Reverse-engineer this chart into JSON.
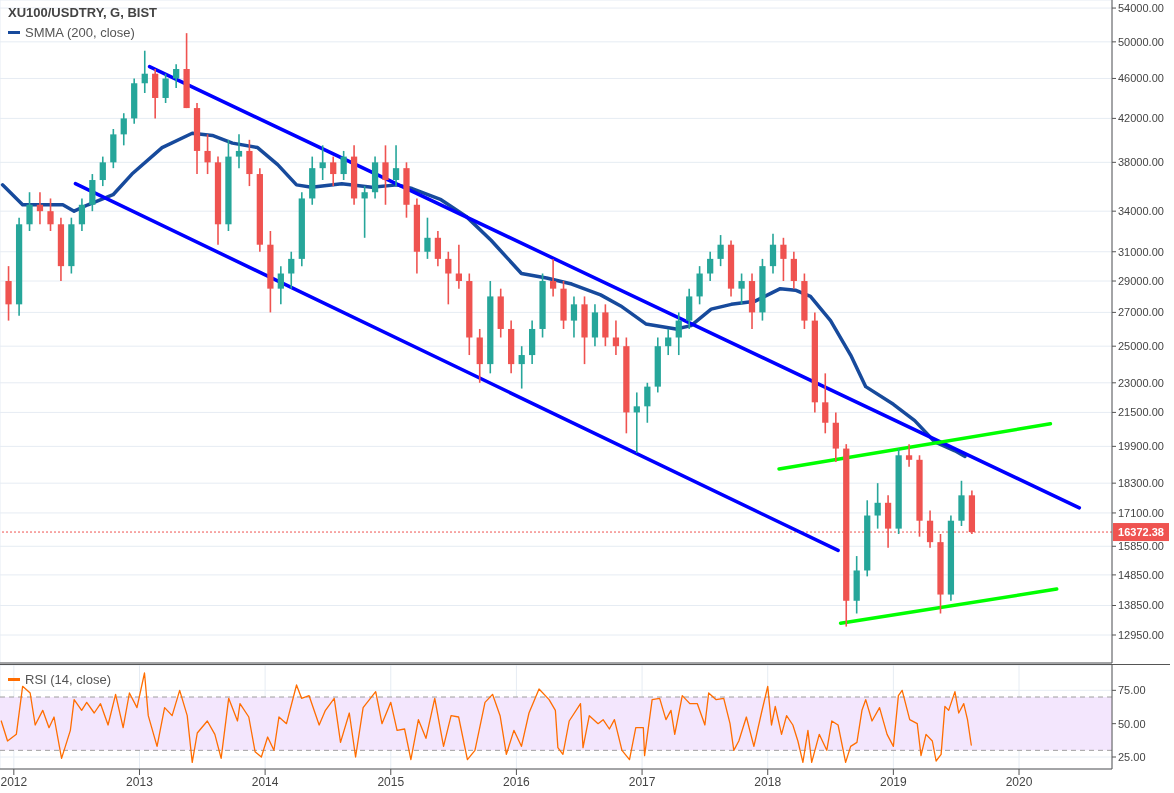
{
  "chart_data": [
    {
      "type": "candlestick",
      "title": "XU100/USDTRY, G, BIST",
      "log": true,
      "grid": true,
      "legend": "top left",
      "tick_labels": "y",
      "xlim": [
        2011.89,
        2020.74
      ],
      "xticks": [
        2012,
        2013,
        2014,
        2015,
        2016,
        2017,
        2018,
        2019,
        2020
      ],
      "ylim": [
        12150,
        55000
      ],
      "yticks": [
        {
          "value": 12950,
          "label": "12950.00"
        },
        {
          "value": 13850,
          "label": "13850.00"
        },
        {
          "value": 14850,
          "label": "14850.00"
        },
        {
          "value": 15850,
          "label": "15850.00"
        },
        {
          "value": 17100,
          "label": "17100.00"
        },
        {
          "value": 18300,
          "label": "18300.00"
        },
        {
          "value": 19900,
          "label": "19900.00"
        },
        {
          "value": 21500,
          "label": "21500.00"
        },
        {
          "value": 23000,
          "label": "23000.00"
        },
        {
          "value": 25000,
          "label": "25000.00"
        },
        {
          "value": 27000,
          "label": "27000.00"
        },
        {
          "value": 29000,
          "label": "29000.00"
        },
        {
          "value": 31000,
          "label": "31000.00"
        },
        {
          "value": 34000,
          "label": "34000.00"
        },
        {
          "value": 38000,
          "label": "38000.00"
        },
        {
          "value": 42000,
          "label": "42000.00"
        },
        {
          "value": 46000,
          "label": "46000.00"
        },
        {
          "value": 50000,
          "label": "50000.00"
        },
        {
          "value": 54000,
          "label": "54000.00"
        }
      ],
      "x": [
        2011.958,
        2012.042,
        2012.125,
        2012.208,
        2012.292,
        2012.375,
        2012.458,
        2012.542,
        2012.625,
        2012.708,
        2012.792,
        2012.875,
        2012.958,
        2013.042,
        2013.125,
        2013.208,
        2013.292,
        2013.375,
        2013.458,
        2013.542,
        2013.625,
        2013.708,
        2013.792,
        2013.875,
        2013.958,
        2014.042,
        2014.125,
        2014.208,
        2014.292,
        2014.375,
        2014.458,
        2014.542,
        2014.625,
        2014.708,
        2014.792,
        2014.875,
        2014.958,
        2015.042,
        2015.125,
        2015.208,
        2015.292,
        2015.375,
        2015.458,
        2015.542,
        2015.625,
        2015.708,
        2015.792,
        2015.875,
        2015.958,
        2016.042,
        2016.125,
        2016.208,
        2016.292,
        2016.375,
        2016.458,
        2016.542,
        2016.625,
        2016.708,
        2016.792,
        2016.875,
        2016.958,
        2017.042,
        2017.125,
        2017.208,
        2017.292,
        2017.375,
        2017.458,
        2017.542,
        2017.625,
        2017.708,
        2017.792,
        2017.875,
        2017.958,
        2018.042,
        2018.125,
        2018.208,
        2018.292,
        2018.375,
        2018.458,
        2018.542,
        2018.625,
        2018.708,
        2018.792,
        2018.875,
        2018.958,
        2019.042,
        2019.125,
        2019.208,
        2019.292,
        2019.375,
        2019.458,
        2019.542,
        2019.625
      ],
      "ohlc": [
        [
          29000,
          30000,
          26500,
          27500
        ],
        [
          27500,
          33500,
          26800,
          33000
        ],
        [
          33000,
          35500,
          32500,
          34500
        ],
        [
          34500,
          35500,
          33000,
          34000
        ],
        [
          34000,
          35000,
          32500,
          33000
        ],
        [
          33000,
          33500,
          29000,
          30000
        ],
        [
          30000,
          33500,
          29500,
          33000
        ],
        [
          33000,
          35000,
          32500,
          34500
        ],
        [
          34500,
          37000,
          34000,
          36500
        ],
        [
          36500,
          38500,
          36000,
          38000
        ],
        [
          38000,
          41000,
          37500,
          40500
        ],
        [
          40500,
          42500,
          39500,
          42000
        ],
        [
          42000,
          46000,
          41500,
          45500
        ],
        [
          45500,
          49000,
          44500,
          46500
        ],
        [
          46500,
          47000,
          42000,
          44000
        ],
        [
          44000,
          46500,
          43500,
          46000
        ],
        [
          46000,
          47500,
          45000,
          47000
        ],
        [
          47000,
          51000,
          43000,
          43000
        ],
        [
          43000,
          43500,
          37000,
          39000
        ],
        [
          39000,
          40500,
          37000,
          38000
        ],
        [
          38000,
          38500,
          31500,
          33000
        ],
        [
          33000,
          40000,
          32500,
          38500
        ],
        [
          38500,
          40500,
          37500,
          39000
        ],
        [
          39000,
          40000,
          36000,
          37000
        ],
        [
          37000,
          37500,
          31000,
          31500
        ],
        [
          31500,
          32500,
          27000,
          28500
        ],
        [
          28500,
          30000,
          27500,
          29500
        ],
        [
          29500,
          31000,
          28500,
          30500
        ],
        [
          30500,
          35500,
          30000,
          35000
        ],
        [
          35000,
          38500,
          34500,
          37500
        ],
        [
          37500,
          39500,
          36500,
          38000
        ],
        [
          38000,
          38500,
          36000,
          37000
        ],
        [
          37000,
          39000,
          36500,
          38500
        ],
        [
          38500,
          39500,
          34500,
          35000
        ],
        [
          35000,
          36000,
          32000,
          35500
        ],
        [
          35500,
          38500,
          35000,
          38000
        ],
        [
          38000,
          39500,
          34500,
          36500
        ],
        [
          36500,
          39500,
          36000,
          37500
        ],
        [
          37500,
          38000,
          33500,
          34500
        ],
        [
          34500,
          35000,
          29500,
          31000
        ],
        [
          31000,
          33500,
          30500,
          32000
        ],
        [
          32000,
          32500,
          30000,
          30500
        ],
        [
          30500,
          31000,
          27500,
          29500
        ],
        [
          29500,
          31500,
          28500,
          29000
        ],
        [
          29000,
          29500,
          24500,
          25500
        ],
        [
          25500,
          26000,
          23000,
          24000
        ],
        [
          24000,
          29000,
          23500,
          28000
        ],
        [
          28000,
          28500,
          25500,
          26000
        ],
        [
          26000,
          26500,
          23500,
          24000
        ],
        [
          24000,
          25000,
          22700,
          24500
        ],
        [
          24500,
          26500,
          24000,
          26000
        ],
        [
          26000,
          29500,
          25500,
          29000
        ],
        [
          29000,
          30500,
          28000,
          28500
        ],
        [
          28500,
          29000,
          26000,
          26500
        ],
        [
          26500,
          28000,
          25500,
          27500
        ],
        [
          27500,
          28000,
          24000,
          25500
        ],
        [
          25500,
          27500,
          25000,
          27000
        ],
        [
          27000,
          27500,
          25000,
          25500
        ],
        [
          25500,
          26500,
          24500,
          25000
        ],
        [
          25000,
          25500,
          20500,
          21500
        ],
        [
          21500,
          22500,
          19600,
          21800
        ],
        [
          21800,
          23000,
          21000,
          22800
        ],
        [
          22800,
          25500,
          22500,
          25000
        ],
        [
          25000,
          26000,
          24500,
          25500
        ],
        [
          25500,
          27000,
          24500,
          26500
        ],
        [
          26500,
          28500,
          26000,
          28000
        ],
        [
          28000,
          30000,
          27500,
          29500
        ],
        [
          29500,
          31000,
          29000,
          30500
        ],
        [
          30500,
          32200,
          30000,
          31500
        ],
        [
          31500,
          31800,
          28000,
          28500
        ],
        [
          28500,
          29500,
          27500,
          29000
        ],
        [
          29000,
          29500,
          26000,
          27000
        ],
        [
          27000,
          30500,
          26500,
          30000
        ],
        [
          30000,
          32300,
          29500,
          31500
        ],
        [
          31500,
          32000,
          29000,
          30500
        ],
        [
          30500,
          31000,
          28500,
          29000
        ],
        [
          29000,
          29500,
          26000,
          26500
        ],
        [
          26500,
          27000,
          21500,
          22000
        ],
        [
          22000,
          23500,
          20500,
          21000
        ],
        [
          21000,
          21500,
          19200,
          19800
        ],
        [
          19800,
          20000,
          13200,
          14000
        ],
        [
          14000,
          15500,
          13600,
          15000
        ],
        [
          15000,
          17600,
          14800,
          17000
        ],
        [
          17000,
          18300,
          16500,
          17500
        ],
        [
          17500,
          17800,
          15800,
          16500
        ],
        [
          16500,
          19800,
          16300,
          19500
        ],
        [
          19500,
          20000,
          19000,
          19300
        ],
        [
          19300,
          19500,
          16200,
          16800
        ],
        [
          16800,
          17200,
          15800,
          16000
        ],
        [
          16000,
          16300,
          13600,
          14200
        ],
        [
          14200,
          17000,
          14000,
          16800
        ],
        [
          16800,
          18400,
          16600,
          17800
        ],
        [
          17800,
          18000,
          16300,
          16372.38
        ]
      ],
      "colors": [
        "#ef5350",
        "#26a69a",
        "#26a69a",
        "#ef5350",
        "#ef5350",
        "#ef5350",
        "#26a69a",
        "#26a69a",
        "#26a69a",
        "#26a69a",
        "#26a69a",
        "#26a69a",
        "#26a69a",
        "#26a69a",
        "#ef5350",
        "#26a69a",
        "#26a69a",
        "#ef5350",
        "#ef5350",
        "#ef5350",
        "#ef5350",
        "#26a69a",
        "#26a69a",
        "#ef5350",
        "#ef5350",
        "#ef5350",
        "#26a69a",
        "#26a69a",
        "#26a69a",
        "#26a69a",
        "#26a69a",
        "#ef5350",
        "#26a69a",
        "#ef5350",
        "#26a69a",
        "#26a69a",
        "#ef5350",
        "#26a69a",
        "#ef5350",
        "#ef5350",
        "#26a69a",
        "#ef5350",
        "#ef5350",
        "#ef5350",
        "#ef5350",
        "#ef5350",
        "#26a69a",
        "#ef5350",
        "#ef5350",
        "#26a69a",
        "#26a69a",
        "#26a69a",
        "#ef5350",
        "#ef5350",
        "#26a69a",
        "#ef5350",
        "#26a69a",
        "#ef5350",
        "#ef5350",
        "#ef5350",
        "#26a69a",
        "#26a69a",
        "#26a69a",
        "#26a69a",
        "#26a69a",
        "#26a69a",
        "#26a69a",
        "#26a69a",
        "#26a69a",
        "#ef5350",
        "#26a69a",
        "#ef5350",
        "#26a69a",
        "#26a69a",
        "#ef5350",
        "#ef5350",
        "#ef5350",
        "#ef5350",
        "#ef5350",
        "#ef5350",
        "#ef5350",
        "#26a69a",
        "#26a69a",
        "#26a69a",
        "#ef5350",
        "#26a69a",
        "#ef5350",
        "#ef5350",
        "#ef5350",
        "#ef5350",
        "#26a69a",
        "#26a69a",
        "#ef5350"
      ],
      "series": [
        {
          "type": "line",
          "name": "SMMA (200, close)",
          "color": "#174a9c",
          "x": [
            2011.91,
            2012.07,
            2012.39,
            2012.48,
            2012.59,
            2012.79,
            2012.94,
            2013.18,
            2013.42,
            2013.58,
            2013.74,
            2013.94,
            2014.1,
            2014.25,
            2014.37,
            2014.61,
            2014.85,
            2015.05,
            2015.17,
            2015.4,
            2015.6,
            2015.8,
            2016.04,
            2016.24,
            2016.44,
            2016.67,
            2016.83,
            2017.03,
            2017.27,
            2017.39,
            2017.55,
            2017.71,
            2017.9,
            2018.1,
            2018.22,
            2018.34,
            2018.5,
            2018.66,
            2018.78,
            2019.0,
            2019.17,
            2019.33,
            2019.49,
            2019.57
          ],
          "values": [
            36100,
            34500,
            34500,
            34000,
            34500,
            35300,
            37000,
            39300,
            40600,
            40400,
            39700,
            39300,
            37800,
            36100,
            35900,
            36200,
            35900,
            36100,
            35800,
            34900,
            33600,
            31800,
            29500,
            29200,
            28800,
            28100,
            27400,
            26300,
            26000,
            26200,
            27200,
            27500,
            27700,
            28500,
            28400,
            28000,
            26500,
            24500,
            22800,
            21900,
            21100,
            20100,
            19700,
            19450
          ]
        },
        {
          "type": "line",
          "color": "#0000ff",
          "x": [
            2013.08,
            2020.48
          ],
          "values": [
            47250,
            17300
          ]
        },
        {
          "type": "line",
          "color": "#0000ff",
          "x": [
            2012.49,
            2018.56
          ],
          "values": [
            36200,
            15700
          ]
        },
        {
          "type": "line",
          "color": "#00ff00",
          "x": [
            2018.09,
            2020.25
          ],
          "values": [
            18900,
            20950
          ]
        },
        {
          "type": "line",
          "color": "#00ff00",
          "x": [
            2018.58,
            2020.3
          ],
          "values": [
            13300,
            14380
          ]
        }
      ],
      "ref_lines": [
        {
          "axis": "y",
          "value": 16372.38,
          "label": "16372.38",
          "color": "#ef5350",
          "line_style": "dotted"
        }
      ]
    },
    {
      "type": "line",
      "grid": true,
      "legend": "top left",
      "xlim": [
        2011.89,
        2020.74
      ],
      "xticks": [
        2012,
        2013,
        2014,
        2015,
        2016,
        2017,
        2018,
        2019,
        2020
      ],
      "ylim": [
        16,
        94
      ],
      "yticks": [
        {
          "value": 25,
          "label": "25.00"
        },
        {
          "value": 50,
          "label": "50.00"
        },
        {
          "value": 75,
          "label": "75.00"
        }
      ],
      "bands": [
        {
          "axis": "y",
          "from": 30,
          "to": 70,
          "color": "#f3e6fd"
        }
      ],
      "ref_lines": [
        {
          "axis": "y",
          "value": 70,
          "color": "#9e9e9e",
          "line_style": "dashed"
        },
        {
          "axis": "y",
          "value": 30,
          "color": "#9e9e9e",
          "line_style": "dashed"
        }
      ],
      "series": [
        {
          "name": "RSI (14, close)",
          "color": "#ff6d00",
          "x": [
            2011.9,
            2011.95,
            2012.02,
            2012.07,
            2012.13,
            2012.17,
            2012.23,
            2012.28,
            2012.32,
            2012.38,
            2012.45,
            2012.48,
            2012.54,
            2012.58,
            2012.64,
            2012.69,
            2012.75,
            2012.81,
            2012.87,
            2012.92,
            2012.98,
            2013.04,
            2013.07,
            2013.14,
            2013.2,
            2013.26,
            2013.32,
            2013.38,
            2013.42,
            2013.46,
            2013.54,
            2013.6,
            2013.65,
            2013.71,
            2013.78,
            2013.8,
            2013.87,
            2013.92,
            2013.97,
            2014.02,
            2014.07,
            2014.11,
            2014.17,
            2014.25,
            2014.29,
            2014.35,
            2014.43,
            2014.48,
            2014.55,
            2014.6,
            2014.67,
            2014.72,
            2014.78,
            2014.88,
            2014.93,
            2015.0,
            2015.05,
            2015.11,
            2015.16,
            2015.22,
            2015.28,
            2015.35,
            2015.42,
            2015.48,
            2015.54,
            2015.61,
            2015.67,
            2015.75,
            2015.81,
            2015.87,
            2015.92,
            2015.98,
            2016.04,
            2016.1,
            2016.18,
            2016.26,
            2016.31,
            2016.33,
            2016.37,
            2016.42,
            2016.51,
            2016.53,
            2016.58,
            2016.65,
            2016.69,
            2016.74,
            2016.78,
            2016.84,
            2016.9,
            2016.95,
            2017.01,
            2017.02,
            2017.08,
            2017.14,
            2017.19,
            2017.23,
            2017.26,
            2017.32,
            2017.38,
            2017.44,
            2017.5,
            2017.53,
            2017.59,
            2017.65,
            2017.7,
            2017.73,
            2017.77,
            2017.83,
            2017.89,
            2017.95,
            2018.0,
            2018.03,
            2018.06,
            2018.11,
            2018.15,
            2018.2,
            2018.24,
            2018.28,
            2018.32,
            2018.35,
            2018.41,
            2018.47,
            2018.51,
            2018.56,
            2018.62,
            2018.66,
            2018.71,
            2018.75,
            2018.78,
            2018.83,
            2018.89,
            2018.95,
            2019.0,
            2019.04,
            2019.07,
            2019.13,
            2019.19,
            2019.22,
            2019.26,
            2019.31,
            2019.34,
            2019.38,
            2019.41,
            2019.44,
            2019.49,
            2019.52,
            2019.56,
            2019.59,
            2019.62
          ],
          "values": [
            52,
            37,
            42,
            78,
            73,
            49,
            60,
            47,
            55,
            24,
            45,
            68,
            60,
            66,
            58,
            65,
            49,
            72,
            47,
            73,
            62,
            88,
            56,
            33,
            62,
            56,
            75,
            56,
            21,
            43,
            52,
            42,
            24,
            69,
            52,
            65,
            55,
            29,
            25,
            40,
            30,
            55,
            50,
            79,
            69,
            71,
            49,
            60,
            69,
            36,
            58,
            25,
            62,
            74,
            50,
            66,
            45,
            46,
            23,
            53,
            39,
            69,
            33,
            56,
            55,
            23,
            30,
            66,
            72,
            56,
            27,
            45,
            33,
            58,
            76,
            68,
            60,
            32,
            27,
            52,
            65,
            32,
            56,
            50,
            53,
            46,
            53,
            30,
            23,
            47,
            47,
            26,
            68,
            69,
            53,
            60,
            42,
            71,
            65,
            65,
            49,
            73,
            68,
            69,
            50,
            30,
            37,
            55,
            33,
            58,
            78,
            49,
            63,
            42,
            56,
            49,
            37,
            21,
            45,
            21,
            42,
            30,
            52,
            49,
            21,
            33,
            36,
            60,
            68,
            52,
            62,
            42,
            33,
            71,
            75,
            53,
            50,
            26,
            42,
            37,
            22,
            27,
            63,
            60,
            74,
            58,
            65,
            53,
            34
          ]
        }
      ]
    }
  ]
}
